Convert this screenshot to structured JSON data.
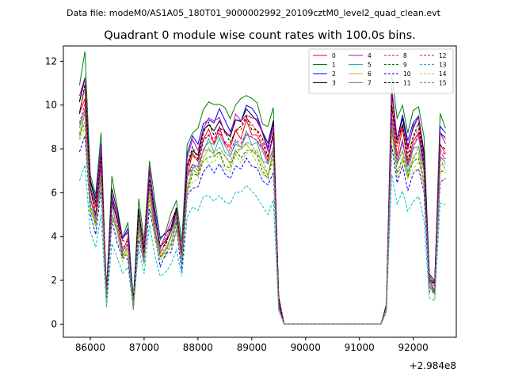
{
  "chart_data": {
    "type": "line",
    "suptitle": "Data file: modeM0/AS1A05_180T01_9000002992_20109cztM0_level2_quad_clean.evt",
    "title": "Quadrant 0 module wise count rates with 100.0s bins.",
    "xlabel": "",
    "ylabel": "",
    "x_offset_label": "+2.984e8",
    "xlim": [
      85500,
      92800
    ],
    "ylim": [
      -0.6,
      12.7
    ],
    "xticks": [
      86000,
      87000,
      88000,
      89000,
      90000,
      91000,
      92000
    ],
    "xtick_labels": [
      "86000",
      "87000",
      "88000",
      "89000",
      "90000",
      "91000",
      "92000"
    ],
    "yticks": [
      0,
      2,
      4,
      6,
      8,
      10,
      12
    ],
    "ytick_labels": [
      "0",
      "2",
      "4",
      "6",
      "8",
      "10",
      "12"
    ],
    "legend_position": "top-right",
    "segments": [
      {
        "start": 85800,
        "n": 38
      },
      {
        "start": 89600,
        "n": 19
      },
      {
        "start": 91500,
        "n": 12
      }
    ],
    "shape": {
      "a": [
        9.8,
        10.8,
        6.2,
        5.2,
        7.6,
        1.3,
        5.8,
        4.8,
        3.6,
        3.9,
        0.9,
        5.0,
        3.3,
        6.8,
        4.8,
        3.5,
        3.8,
        4.3,
        5.2,
        3.2,
        7.2,
        7.9,
        7.7,
        8.8,
        9.0,
        8.7,
        9.1,
        8.6,
        8.3,
        9.0,
        8.9,
        9.4,
        9.1,
        8.8,
        8.3,
        7.8,
        8.8,
        1.0
      ],
      "b": [
        0,
        0,
        0,
        0,
        0,
        0,
        0,
        0,
        0,
        0,
        0,
        0,
        0,
        0,
        0,
        0,
        0,
        0,
        0
      ],
      "c": [
        0.8,
        10.2,
        8.1,
        9.0,
        7.7,
        8.5,
        9.0,
        7.4,
        2.0,
        1.7,
        8.3,
        8.1
      ]
    },
    "series": [
      {
        "name": "0",
        "color": "#ff0000",
        "dash": "solid",
        "scale": 0.97
      },
      {
        "name": "1",
        "color": "#008000",
        "dash": "solid",
        "scale": 1.13
      },
      {
        "name": "2",
        "color": "#0000ff",
        "dash": "solid",
        "scale": 1.06
      },
      {
        "name": "3",
        "color": "#000000",
        "dash": "solid",
        "scale": 1.03
      },
      {
        "name": "4",
        "color": "#bf00bf",
        "dash": "solid",
        "scale": 1.04
      },
      {
        "name": "5",
        "color": "#20b2aa",
        "dash": "solid",
        "scale": 0.92
      },
      {
        "name": "6",
        "color": "#bfbf00",
        "dash": "solid",
        "scale": 0.88
      },
      {
        "name": "7",
        "color": "#808080",
        "dash": "solid",
        "scale": 0.93
      },
      {
        "name": "8",
        "color": "#ff0000",
        "dash": "dashed",
        "scale": 0.98
      },
      {
        "name": "9",
        "color": "#008000",
        "dash": "dashed",
        "scale": 0.86
      },
      {
        "name": "10",
        "color": "#0000ff",
        "dash": "dashed",
        "scale": 0.8
      },
      {
        "name": "11",
        "color": "#000000",
        "dash": "dashed",
        "scale": 1.0
      },
      {
        "name": "12",
        "color": "#bf00bf",
        "dash": "dashed",
        "scale": 0.95
      },
      {
        "name": "13",
        "color": "#00bfbf",
        "dash": "dashed",
        "scale": 0.66
      },
      {
        "name": "14",
        "color": "#bfbf00",
        "dash": "dashed",
        "scale": 0.84
      },
      {
        "name": "15",
        "color": "#808080",
        "dash": "dashed",
        "scale": 0.89
      }
    ]
  }
}
